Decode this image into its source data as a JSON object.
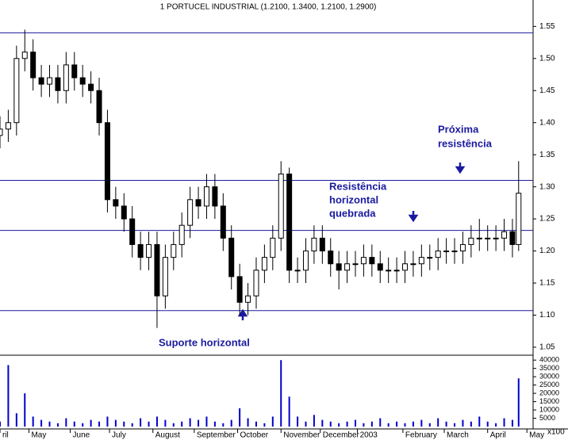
{
  "chart_data": {
    "type": "candlestick",
    "title": "1 PORTUCEL INDUSTRIAL (1.2100, 1.3400, 1.2100, 1.2900)",
    "x": [
      0,
      4,
      8,
      12,
      16,
      20,
      24,
      28,
      32,
      36,
      40,
      44,
      48,
      52,
      56,
      60,
      64,
      68,
      72,
      76,
      80,
      84,
      88,
      92,
      96,
      100,
      104,
      108,
      112,
      116,
      120,
      124,
      128,
      132,
      136,
      140,
      144,
      148,
      152,
      156,
      160,
      164,
      168,
      172,
      176,
      180,
      184,
      188,
      192,
      196,
      200,
      204,
      208,
      212,
      216,
      220,
      224,
      228,
      232,
      236,
      240,
      244,
      248,
      251
    ],
    "open": [
      1.38,
      1.39,
      1.4,
      1.5,
      1.51,
      1.47,
      1.46,
      1.47,
      1.45,
      1.49,
      1.47,
      1.46,
      1.45,
      1.4,
      1.28,
      1.27,
      1.25,
      1.21,
      1.19,
      1.21,
      1.13,
      1.19,
      1.21,
      1.24,
      1.28,
      1.27,
      1.3,
      1.27,
      1.22,
      1.16,
      1.12,
      1.13,
      1.17,
      1.19,
      1.22,
      1.32,
      1.17,
      1.17,
      1.2,
      1.22,
      1.2,
      1.18,
      1.17,
      1.18,
      1.18,
      1.19,
      1.18,
      1.17,
      1.17,
      1.17,
      1.18,
      1.18,
      1.19,
      1.19,
      1.2,
      1.2,
      1.2,
      1.21,
      1.22,
      1.22,
      1.22,
      1.22,
      1.23,
      1.21
    ],
    "high": [
      1.41,
      1.42,
      1.52,
      1.545,
      1.53,
      1.49,
      1.49,
      1.49,
      1.51,
      1.51,
      1.49,
      1.48,
      1.47,
      1.42,
      1.3,
      1.29,
      1.27,
      1.23,
      1.23,
      1.23,
      1.21,
      1.23,
      1.26,
      1.3,
      1.3,
      1.32,
      1.32,
      1.29,
      1.24,
      1.18,
      1.15,
      1.19,
      1.21,
      1.24,
      1.34,
      1.33,
      1.19,
      1.22,
      1.24,
      1.24,
      1.22,
      1.2,
      1.2,
      1.2,
      1.21,
      1.21,
      1.2,
      1.19,
      1.19,
      1.2,
      1.2,
      1.21,
      1.21,
      1.22,
      1.22,
      1.22,
      1.23,
      1.24,
      1.25,
      1.24,
      1.24,
      1.25,
      1.25,
      1.34
    ],
    "low": [
      1.36,
      1.37,
      1.38,
      1.48,
      1.45,
      1.44,
      1.44,
      1.43,
      1.43,
      1.45,
      1.44,
      1.43,
      1.38,
      1.26,
      1.25,
      1.23,
      1.19,
      1.17,
      1.17,
      1.08,
      1.11,
      1.17,
      1.19,
      1.22,
      1.25,
      1.25,
      1.25,
      1.2,
      1.14,
      1.1,
      1.1,
      1.11,
      1.15,
      1.17,
      1.2,
      1.15,
      1.15,
      1.15,
      1.18,
      1.18,
      1.16,
      1.14,
      1.15,
      1.16,
      1.16,
      1.16,
      1.15,
      1.15,
      1.15,
      1.15,
      1.16,
      1.16,
      1.17,
      1.17,
      1.18,
      1.18,
      1.18,
      1.19,
      1.2,
      1.2,
      1.2,
      1.2,
      1.19,
      1.2
    ],
    "close": [
      1.39,
      1.4,
      1.5,
      1.51,
      1.47,
      1.46,
      1.47,
      1.45,
      1.49,
      1.47,
      1.46,
      1.45,
      1.4,
      1.28,
      1.27,
      1.25,
      1.21,
      1.19,
      1.21,
      1.13,
      1.19,
      1.21,
      1.24,
      1.28,
      1.27,
      1.3,
      1.27,
      1.22,
      1.16,
      1.12,
      1.13,
      1.17,
      1.19,
      1.22,
      1.32,
      1.17,
      1.17,
      1.2,
      1.22,
      1.2,
      1.18,
      1.17,
      1.18,
      1.18,
      1.19,
      1.18,
      1.17,
      1.17,
      1.17,
      1.18,
      1.18,
      1.19,
      1.19,
      1.2,
      1.2,
      1.2,
      1.21,
      1.22,
      1.22,
      1.22,
      1.22,
      1.23,
      1.21,
      1.29
    ],
    "up_color": "#ffffff",
    "down_color": "#000000",
    "xlim": [
      0,
      258
    ],
    "xticks": [
      {
        "value": 0,
        "label": "ril"
      },
      {
        "value": 14,
        "label": "May"
      },
      {
        "value": 34,
        "label": "June"
      },
      {
        "value": 53,
        "label": "July"
      },
      {
        "value": 74,
        "label": "August"
      },
      {
        "value": 94,
        "label": "September"
      },
      {
        "value": 115,
        "label": "October"
      },
      {
        "value": 136,
        "label": "November"
      },
      {
        "value": 155,
        "label": "December"
      },
      {
        "value": 173,
        "label": "2003"
      },
      {
        "value": 195,
        "label": "February"
      },
      {
        "value": 215,
        "label": "March"
      },
      {
        "value": 236,
        "label": "April"
      },
      {
        "value": 255,
        "label": "May"
      }
    ],
    "ylim": [
      1.04,
      1.585
    ],
    "yticks": [
      1.05,
      {
        "value": 1.1,
        "label": "1.10"
      },
      1.15,
      {
        "value": 1.2,
        "label": "1.20"
      },
      1.25,
      {
        "value": 1.3,
        "label": "1.30"
      },
      1.35,
      {
        "value": 1.4,
        "label": "1.40"
      },
      1.45,
      {
        "value": 1.5,
        "label": "1.50"
      },
      1.55
    ],
    "hlines": [
      1.54,
      1.31,
      1.232,
      1.107
    ],
    "hline_color": "#1a1aa0",
    "annotations": [
      [
        "Próxima",
        "resistência"
      ],
      [
        "Resistência",
        "horizontal",
        "quebrada"
      ],
      [
        "Suporte horizontal"
      ]
    ],
    "volume": {
      "values": [
        3000,
        37000,
        8000,
        20000,
        6000,
        4000,
        3000,
        2000,
        5000,
        3000,
        2000,
        4000,
        3000,
        6000,
        4000,
        3000,
        2000,
        5000,
        3000,
        6000,
        4000,
        2000,
        3000,
        5000,
        4000,
        6000,
        3000,
        2000,
        4000,
        11000,
        5000,
        3000,
        2000,
        6000,
        40000,
        18000,
        6000,
        3000,
        7000,
        4000,
        3000,
        2000,
        3000,
        4000,
        2000,
        3000,
        5000,
        2000,
        3000,
        2000,
        3000,
        4000,
        2000,
        5000,
        3000,
        2000,
        4000,
        3000,
        6000,
        3000,
        2000,
        5000,
        4000,
        29000
      ],
      "color": "#0000cc",
      "ylim": [
        0,
        42000
      ],
      "yticks": [
        5000,
        10000,
        15000,
        20000,
        25000,
        30000,
        35000,
        40000
      ],
      "unit_label": "x100"
    }
  }
}
